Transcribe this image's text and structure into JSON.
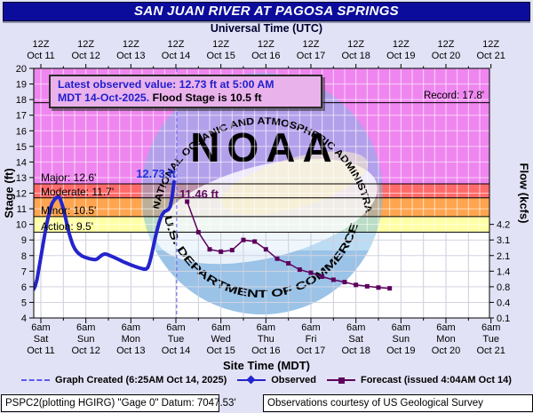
{
  "title": "SAN JUAN RIVER AT PAGOSA SPRINGS",
  "top_axis": {
    "label": "Universal Time (UTC)",
    "ticks": [
      {
        "z": "12Z",
        "date": "Oct 11"
      },
      {
        "z": "12Z",
        "date": "Oct 12"
      },
      {
        "z": "12Z",
        "date": "Oct 13"
      },
      {
        "z": "12Z",
        "date": "Oct 14"
      },
      {
        "z": "12Z",
        "date": "Oct 15"
      },
      {
        "z": "12Z",
        "date": "Oct 16"
      },
      {
        "z": "12Z",
        "date": "Oct 17"
      },
      {
        "z": "12Z",
        "date": "Oct 18"
      },
      {
        "z": "12Z",
        "date": "Oct 19"
      },
      {
        "z": "12Z",
        "date": "Oct 20"
      },
      {
        "z": "12Z",
        "date": "Oct 21"
      }
    ]
  },
  "bottom_axis": {
    "label": "Site Time (MDT)",
    "ticks": [
      {
        "time": "6am",
        "day": "Sat",
        "date": "Oct 11"
      },
      {
        "time": "6am",
        "day": "Sun",
        "date": "Oct 12"
      },
      {
        "time": "6am",
        "day": "Mon",
        "date": "Oct 13"
      },
      {
        "time": "6am",
        "day": "Tue",
        "date": "Oct 14"
      },
      {
        "time": "6am",
        "day": "Wed",
        "date": "Oct 15"
      },
      {
        "time": "6am",
        "day": "Thu",
        "date": "Oct 16"
      },
      {
        "time": "6am",
        "day": "Fri",
        "date": "Oct 17"
      },
      {
        "time": "6am",
        "day": "Sat",
        "date": "Oct 18"
      },
      {
        "time": "6am",
        "day": "Sun",
        "date": "Oct 19"
      },
      {
        "time": "6am",
        "day": "Mon",
        "date": "Oct 20"
      },
      {
        "time": "6am",
        "day": "Tue",
        "date": "Oct 21"
      }
    ]
  },
  "left_axis": {
    "label": "Stage (ft)",
    "ticks": [
      4,
      5,
      6,
      7,
      8,
      9,
      10,
      11,
      12,
      13,
      14,
      15,
      16,
      17,
      18,
      19,
      20
    ]
  },
  "right_axis": {
    "label": "Flow (kcfs)",
    "ticks": [
      {
        "stage": 10,
        "flow": "4.2"
      },
      {
        "stage": 9,
        "flow": "3.1"
      },
      {
        "stage": 8,
        "flow": "2.1"
      },
      {
        "stage": 7,
        "flow": "1.4"
      },
      {
        "stage": 6,
        "flow": "0.8"
      },
      {
        "stage": 5,
        "flow": "0.4"
      },
      {
        "stage": 4,
        "flow": "0.1"
      }
    ]
  },
  "info_box": {
    "line1": "Latest observed value: 12.73 ft at 5:00 AM",
    "line2_blue": "MDT 14-Oct-2025.",
    "line2_black": " Flood Stage is 10.5 ft"
  },
  "annotations": {
    "observed_peak": "12.73 ft",
    "forecast_start": "11.46 ft",
    "record": "Record: 17.8'"
  },
  "flood_levels": [
    {
      "name": "Major",
      "label": "Major: 12.6'",
      "stage": 12.6
    },
    {
      "name": "Moderate",
      "label": "Moderate: 11.7'",
      "stage": 11.7
    },
    {
      "name": "Minor",
      "label": "Minor: 10.5'",
      "stage": 10.5
    },
    {
      "name": "Action",
      "label": "Action: 9.5'",
      "stage": 9.5
    }
  ],
  "legend": {
    "graph_created": "Graph Created (6:25AM Oct 14, 2025)",
    "observed": "Observed",
    "forecast": "Forecast (issued 4:04AM Oct 14)"
  },
  "footer": {
    "left": "PSPC2(plotting HGIRG) \"Gage 0\" Datum: 7047.53'",
    "right": "Observations courtesy of US Geological Survey"
  },
  "watermark": {
    "top_arc": "NATIONAL OCEANIC AND ATMOSPHERIC ADMINISTRATION",
    "bottom_arc": "U.S. DEPARTMENT OF COMMERCE",
    "center": "NOAA"
  },
  "colors": {
    "title_bg": "#0c0c9c",
    "page_bg": "#e2e2f6",
    "band_major": "#ef86ef",
    "band_moderate": "#ff6b6b",
    "band_minor": "#ffa54f",
    "band_action": "#ffffa6",
    "band_none": "#ffffff",
    "observed": "#2424cc",
    "forecast": "#5c005c",
    "created_line": "#5a5aee"
  },
  "chart_data": {
    "type": "line",
    "title": "SAN JUAN RIVER AT PAGOSA SPRINGS",
    "xlabel_top": "Universal Time (UTC)",
    "xlabel_bottom": "Site Time (MDT)",
    "ylabel": "Stage (ft)",
    "y2label": "Flow (kcfs)",
    "ylim": [
      4,
      20
    ],
    "x_unit": "hours since Oct 11 6am MDT",
    "x_range_hours": [
      -3.8,
      239.2
    ],
    "flood_stage_ft": 10.5,
    "record_stage_ft": 17.8,
    "graph_created_hour": 72.42,
    "bands": [
      {
        "from": 20,
        "to": 12.6,
        "color": "#ef86ef"
      },
      {
        "from": 12.6,
        "to": 11.7,
        "color": "#ff6b6b"
      },
      {
        "from": 11.7,
        "to": 10.5,
        "color": "#ffa54f"
      },
      {
        "from": 10.5,
        "to": 9.5,
        "color": "#ffffa6"
      },
      {
        "from": 9.5,
        "to": 4,
        "color": "#ffffff"
      }
    ],
    "series": [
      {
        "name": "Observed",
        "color": "#2424cc",
        "points": [
          [
            -3.8,
            5.85
          ],
          [
            -3,
            6.05
          ],
          [
            -2,
            6.5
          ],
          [
            -1,
            7.2
          ],
          [
            0,
            7.9
          ],
          [
            1,
            8.6
          ],
          [
            2,
            9.3
          ],
          [
            3,
            9.95
          ],
          [
            4,
            10.5
          ],
          [
            5,
            11.0
          ],
          [
            6,
            11.35
          ],
          [
            7,
            11.55
          ],
          [
            8,
            11.68
          ],
          [
            9,
            11.76
          ],
          [
            10,
            11.72
          ],
          [
            11,
            11.4
          ],
          [
            12,
            11.0
          ],
          [
            13,
            10.5
          ],
          [
            14,
            9.95
          ],
          [
            15,
            9.45
          ],
          [
            16,
            9.05
          ],
          [
            17,
            8.7
          ],
          [
            18,
            8.45
          ],
          [
            19,
            8.28
          ],
          [
            20,
            8.15
          ],
          [
            22,
            7.97
          ],
          [
            24,
            7.87
          ],
          [
            26,
            7.8
          ],
          [
            28,
            7.75
          ],
          [
            29,
            7.74
          ],
          [
            30,
            7.78
          ],
          [
            31,
            7.88
          ],
          [
            32,
            7.98
          ],
          [
            33,
            8.06
          ],
          [
            34,
            8.1
          ],
          [
            35,
            8.09
          ],
          [
            36,
            8.04
          ],
          [
            38,
            7.94
          ],
          [
            40,
            7.83
          ],
          [
            42,
            7.72
          ],
          [
            44,
            7.6
          ],
          [
            46,
            7.5
          ],
          [
            48,
            7.4
          ],
          [
            50,
            7.31
          ],
          [
            52,
            7.23
          ],
          [
            54,
            7.16
          ],
          [
            55,
            7.13
          ],
          [
            56,
            7.13
          ],
          [
            57,
            7.22
          ],
          [
            58,
            7.55
          ],
          [
            59,
            8.05
          ],
          [
            60,
            8.6
          ],
          [
            61,
            9.15
          ],
          [
            62,
            9.65
          ],
          [
            63,
            10.1
          ],
          [
            64,
            10.45
          ],
          [
            65,
            10.68
          ],
          [
            66,
            10.82
          ],
          [
            67,
            10.88
          ],
          [
            68,
            10.95
          ],
          [
            69,
            11.15
          ],
          [
            69.7,
            11.55
          ],
          [
            70.3,
            12.05
          ],
          [
            70.7,
            12.45
          ],
          [
            71,
            12.73
          ]
        ]
      },
      {
        "name": "Forecast (issued 4:04AM Oct 14)",
        "color": "#5c005c",
        "points": [
          [
            78,
            11.46
          ],
          [
            84,
            9.5
          ],
          [
            90,
            8.4
          ],
          [
            96,
            8.25
          ],
          [
            102,
            8.35
          ],
          [
            108,
            9.0
          ],
          [
            114,
            8.9
          ],
          [
            120,
            8.4
          ],
          [
            126,
            7.8
          ],
          [
            132,
            7.5
          ],
          [
            138,
            7.1
          ],
          [
            144,
            6.9
          ],
          [
            150,
            6.65
          ],
          [
            156,
            6.45
          ],
          [
            162,
            6.3
          ],
          [
            168,
            6.12
          ],
          [
            174,
            6.03
          ],
          [
            180,
            5.95
          ],
          [
            186,
            5.9
          ]
        ]
      }
    ]
  }
}
